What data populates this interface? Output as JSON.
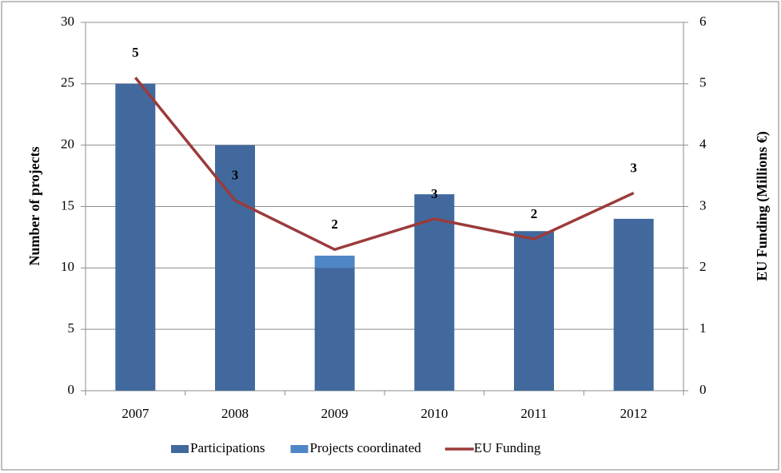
{
  "chart_data": {
    "type": "bar",
    "categories": [
      "2007",
      "2008",
      "2009",
      "2010",
      "2011",
      "2012"
    ],
    "series": [
      {
        "name": "Participations",
        "color": "#41699d",
        "values": [
          25,
          20,
          10,
          16,
          13,
          14
        ]
      },
      {
        "name": "Projects coordinated",
        "color": "#4f86c6",
        "values": [
          0,
          0,
          1,
          0,
          0,
          0
        ]
      },
      {
        "name": "EU Funding",
        "color": "#9b3b3b",
        "type": "line",
        "axis": "y2",
        "values": [
          5.1,
          3.1,
          2.3,
          2.8,
          2.47,
          3.22
        ],
        "value_labels": [
          "5",
          "3",
          "2",
          "3",
          "2",
          "3"
        ]
      }
    ],
    "ylabel": "Number of projects",
    "y2label": "EU Funding (Millions €)",
    "ylim": [
      0,
      30
    ],
    "yticks": [
      0,
      5,
      10,
      15,
      20,
      25,
      30
    ],
    "y2lim": [
      0,
      6
    ],
    "y2ticks": [
      0,
      1,
      2,
      3,
      4,
      5,
      6
    ],
    "grid": true,
    "legend": "bottom",
    "stacked": true
  }
}
